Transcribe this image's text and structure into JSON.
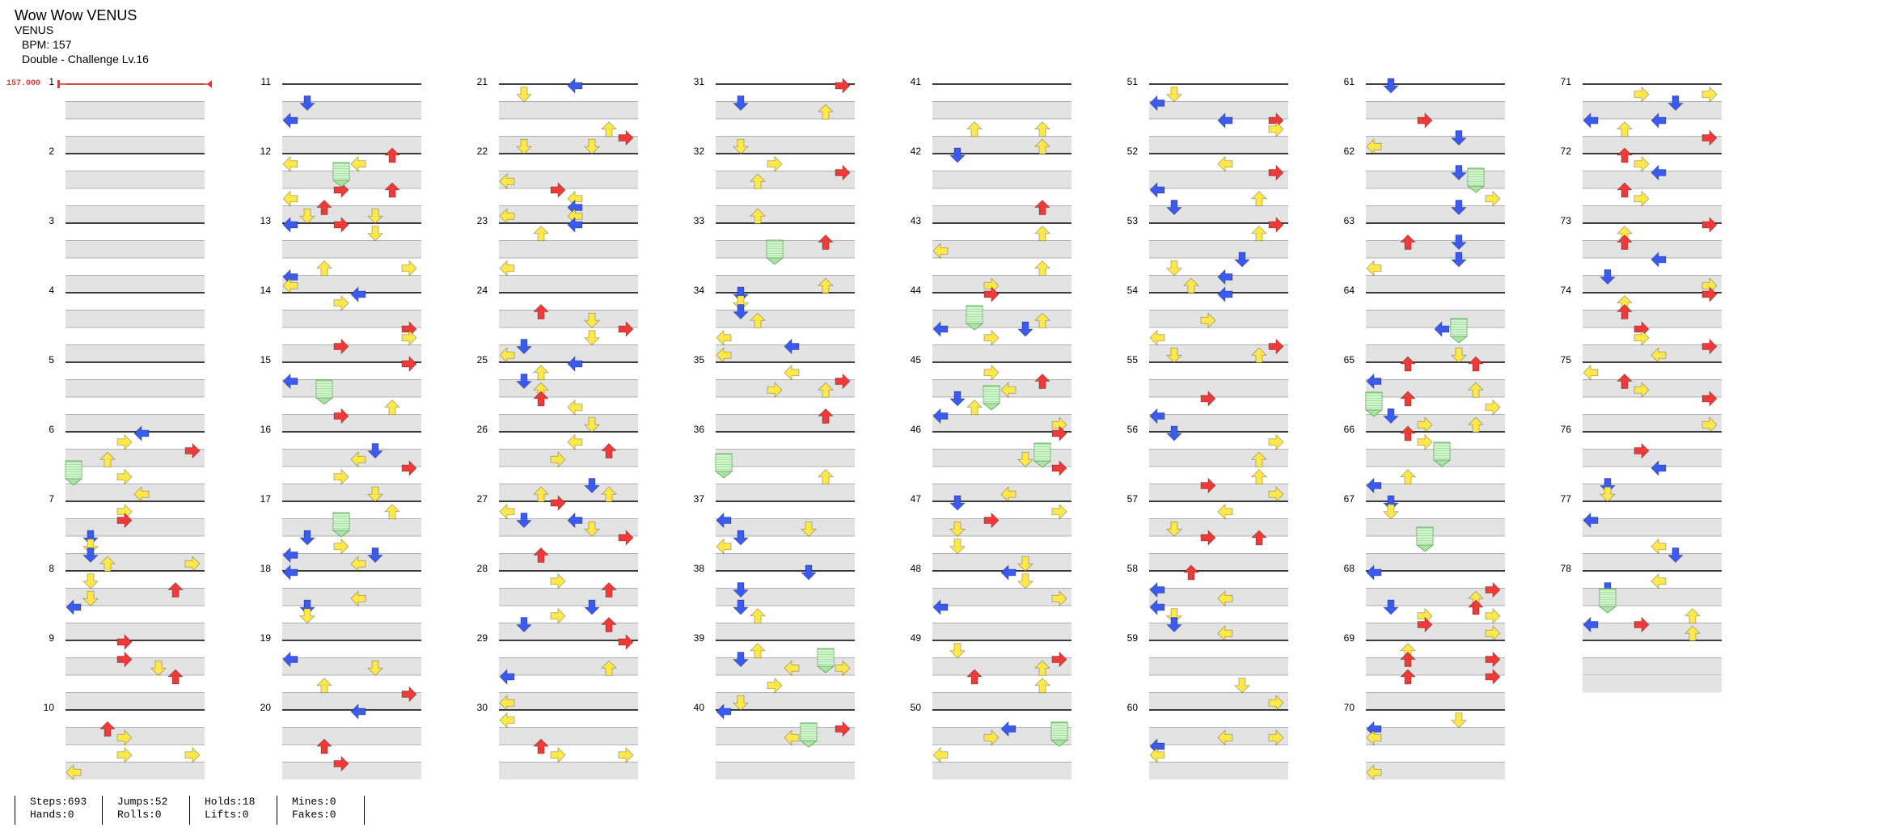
{
  "song": {
    "title": "Wow Wow VENUS",
    "artist": "VENUS"
  },
  "meta": {
    "bpm_text": "BPM: 157",
    "chart_text": "Double - Challenge Lv.16"
  },
  "bpm_marker": "157.000",
  "columns": [
    {
      "measures": [
        "1",
        "2",
        "3",
        "4",
        "5",
        "6",
        "7",
        "8",
        "9",
        "10"
      ]
    },
    {
      "measures": [
        "11",
        "12",
        "13",
        "14",
        "15",
        "16",
        "17",
        "18",
        "19",
        "20"
      ]
    },
    {
      "measures": [
        "21",
        "22",
        "23",
        "24",
        "25",
        "26",
        "27",
        "28",
        "29",
        "30"
      ]
    },
    {
      "measures": [
        "31",
        "32",
        "33",
        "34",
        "35",
        "36",
        "37",
        "38",
        "39",
        "40"
      ]
    },
    {
      "measures": [
        "41",
        "42",
        "43",
        "44",
        "45",
        "46",
        "47",
        "48",
        "49",
        "50"
      ]
    },
    {
      "measures": [
        "51",
        "52",
        "53",
        "54",
        "55",
        "56",
        "57",
        "58",
        "59",
        "60"
      ]
    },
    {
      "measures": [
        "61",
        "62",
        "63",
        "64",
        "65",
        "66",
        "67",
        "68",
        "69",
        "70"
      ]
    },
    {
      "measures": [
        "71",
        "72",
        "73",
        "74",
        "75",
        "76",
        "77",
        "78"
      ]
    }
  ],
  "stats": {
    "steps": "Steps:693",
    "hands": "Hands:0",
    "jumps": "Jumps:52",
    "rolls": "Rolls:0",
    "holds": "Holds:18",
    "lifts": "Lifts:0",
    "mines": "Mines:0",
    "fakes": "Fakes:0"
  },
  "colors": {
    "red": "#ef3a3a",
    "blue": "#3b5bf0",
    "yellow": "#ffe94a",
    "green": "#a6e6a0",
    "band": "#e3e3e3",
    "bpm": "#e53935"
  }
}
